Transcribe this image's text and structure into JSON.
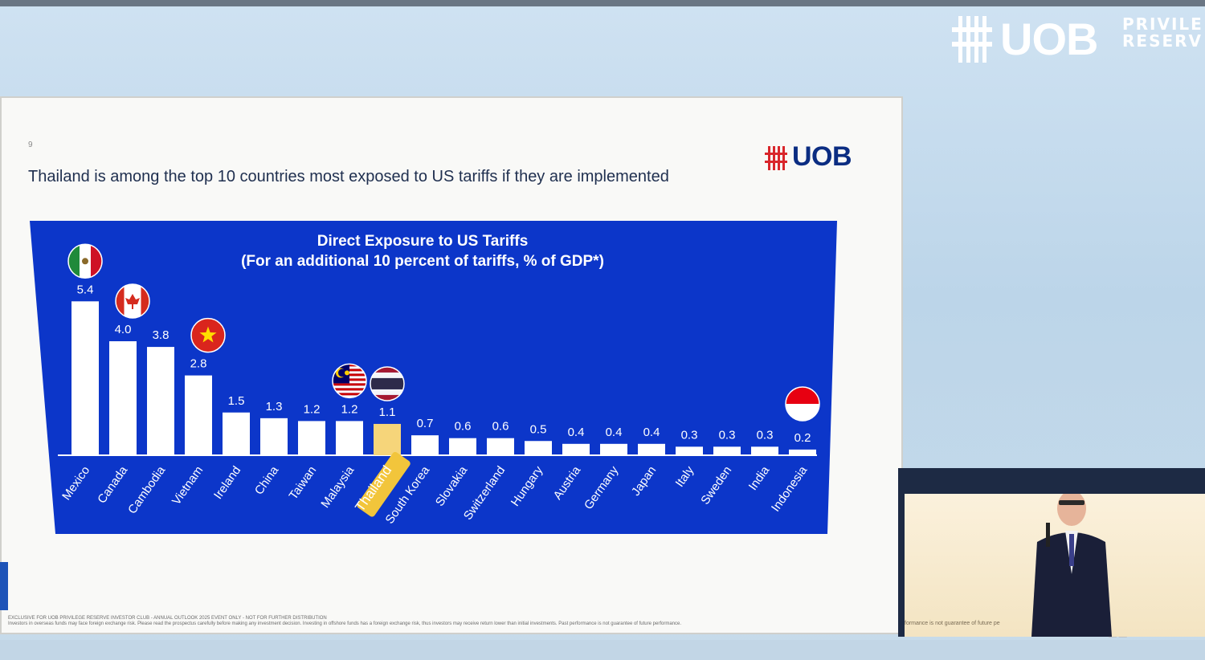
{
  "brand": {
    "word": "UOB",
    "privilege_line1": "PRIVILE",
    "privilege_line2": "RESERV"
  },
  "slide": {
    "number": "9",
    "title": "Thailand is among the top 10 countries most exposed to US tariffs if they are implemented",
    "logo_text": "UOB",
    "disclaimer_line1": "EXCLUSIVE FOR UOB PRIVILEGE RESERVE INVESTOR CLUB - ANNUAL OUTLOOK 2025 EVENT ONLY - NOT FOR FURTHER DISTRIBUTION",
    "disclaimer_line2": "Investors in overseas funds may face foreign exchange risk. Please read the prospectus carefully before making any investment decision. Investing in offshore funds has a foreign exchange risk, thus investors may receive return lower than initial investments. Past performance is not guarantee of future performance."
  },
  "video": {
    "caption": "formance is not guarantee of future pe"
  },
  "colors": {
    "chart_bg": "#0c36c9",
    "bar": "#ffffff",
    "highlight": "#f6d57a",
    "highlight_label_bg": "#f2c53b",
    "brand_blue": "#0b2d82",
    "uob_red": "#d9262b"
  },
  "chart_data": {
    "type": "bar",
    "title": "Direct Exposure to US Tariffs",
    "subtitle": "(For an additional 10 percent of tariffs, % of GDP*)",
    "categories": [
      "Mexico",
      "Canada",
      "Cambodia",
      "Vietnam",
      "Ireland",
      "China",
      "Taiwan",
      "Malaysia",
      "Thailand",
      "South Korea",
      "Slovakia",
      "Switzerland",
      "Hungary",
      "Austria",
      "Germany",
      "Japan",
      "Italy",
      "Sweden",
      "India",
      "Indonesia"
    ],
    "values": [
      5.4,
      4.0,
      3.8,
      2.8,
      1.5,
      1.3,
      1.2,
      1.2,
      1.1,
      0.7,
      0.6,
      0.6,
      0.5,
      0.4,
      0.4,
      0.4,
      0.3,
      0.3,
      0.3,
      0.2
    ],
    "value_labels": [
      "5.4",
      "4.0",
      "3.8",
      "2.8",
      "1.5",
      "1.3",
      "1.2",
      "1.2",
      "1.1",
      "0.7",
      "0.6",
      "0.6",
      "0.5",
      "0.4",
      "0.4",
      "0.4",
      "0.3",
      "0.3",
      "0.3",
      "0.2"
    ],
    "highlight": "Thailand",
    "flags": [
      "Mexico",
      "Canada",
      "Vietnam",
      "Malaysia",
      "Thailand",
      "Indonesia"
    ],
    "ylim": [
      0,
      6
    ],
    "grid": false,
    "legend": "none"
  }
}
